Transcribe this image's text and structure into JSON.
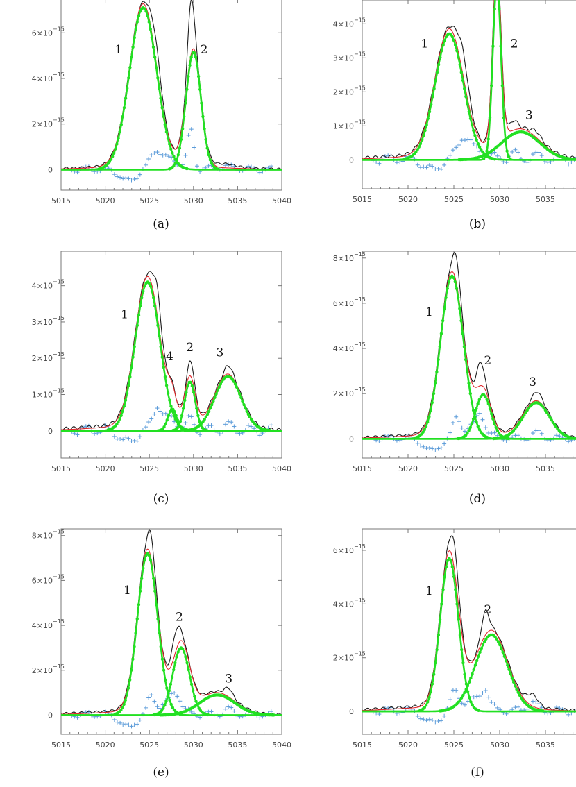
{
  "figure": {
    "colors": {
      "observed": "#1a1a1a",
      "model": "#e0282d",
      "component": "#22e022",
      "residual": "#5b9bd9",
      "axis": "#777777"
    }
  },
  "chart_data": [
    {
      "panel": "a",
      "caption": "(a)",
      "type": "line",
      "xlabel": "",
      "ylabel": "",
      "xlim": [
        5015,
        5040
      ],
      "ylim": [
        -0.9,
        7.5
      ],
      "xticks": [
        5015,
        5020,
        5025,
        5030,
        5035,
        5040
      ],
      "xtick_labels": [
        "5015",
        "5020",
        "5025",
        "5030",
        "5035",
        "5040"
      ],
      "yticks": [
        0,
        2,
        4,
        6
      ],
      "ytick_labels": [
        "0",
        "2×10",
        "4×10",
        "6×10"
      ],
      "exponent": "−15",
      "components": [
        {
          "label": "1",
          "center": 5024.3,
          "amp": 7.1,
          "sigma": 1.55
        },
        {
          "label": "2",
          "center": 5030.0,
          "amp": 5.15,
          "sigma": 0.85
        }
      ],
      "label_positions": [
        {
          "label": "1",
          "x": 5021.5,
          "y": 5.1
        },
        {
          "label": "2",
          "x": 5031.2,
          "y": 5.1
        }
      ],
      "features": [
        {
          "center": 5025.7,
          "amp": 0.9,
          "sigma": 0.6
        },
        {
          "center": 5029.7,
          "amp": 2.4,
          "sigma": 0.35
        },
        {
          "center": 5033.5,
          "amp": 0.15,
          "sigma": 1.2
        }
      ],
      "wing": 0.2,
      "model_wing": 0.18
    },
    {
      "panel": "b",
      "caption": "(b)",
      "type": "line",
      "xlabel": "",
      "ylabel": "",
      "xlim": [
        5015,
        5040
      ],
      "ylim": [
        -0.85,
        4.7
      ],
      "xticks": [
        5015,
        5020,
        5025,
        5030,
        5035,
        5040
      ],
      "xtick_labels": [
        "5015",
        "5020",
        "5025",
        "5030",
        "5035",
        "5040"
      ],
      "yticks": [
        0,
        1,
        2,
        3,
        4
      ],
      "ytick_labels": [
        "0",
        "1×10",
        "2×10",
        "3×10",
        "4×10"
      ],
      "exponent": "−15",
      "components": [
        {
          "label": "1",
          "center": 5024.5,
          "amp": 3.7,
          "sigma": 1.55
        },
        {
          "label": "2",
          "center": 5029.7,
          "amp": 5.2,
          "sigma": 0.45
        },
        {
          "label": "3",
          "center": 5032.3,
          "amp": 0.82,
          "sigma": 2.1
        }
      ],
      "label_positions": [
        {
          "label": "1",
          "x": 5021.8,
          "y": 3.3
        },
        {
          "label": "2",
          "x": 5031.6,
          "y": 3.3
        },
        {
          "label": "3",
          "x": 5033.2,
          "y": 1.2
        }
      ],
      "features": [
        {
          "center": 5026.0,
          "amp": 0.7,
          "sigma": 0.6
        },
        {
          "center": 5031.5,
          "amp": 0.25,
          "sigma": 0.4
        },
        {
          "center": 5034.0,
          "amp": 0.15,
          "sigma": 0.5
        }
      ],
      "wing": 0.2,
      "model_wing": 0.16
    },
    {
      "panel": "c",
      "caption": "(c)",
      "type": "line",
      "xlabel": "",
      "ylabel": "",
      "xlim": [
        5015,
        5040
      ],
      "ylim": [
        -0.75,
        4.95
      ],
      "xticks": [
        5015,
        5020,
        5025,
        5030,
        5035,
        5040
      ],
      "xtick_labels": [
        "5015",
        "5020",
        "5025",
        "5030",
        "5035",
        "5040"
      ],
      "yticks": [
        0,
        1,
        2,
        3,
        4
      ],
      "ytick_labels": [
        "0",
        "1×10",
        "2×10",
        "3×10",
        "4×10"
      ],
      "exponent": "−15",
      "components": [
        {
          "label": "1",
          "center": 5024.8,
          "amp": 4.1,
          "sigma": 1.4
        },
        {
          "label": "4",
          "center": 5027.6,
          "amp": 0.6,
          "sigma": 0.5
        },
        {
          "label": "2",
          "center": 5029.6,
          "amp": 1.35,
          "sigma": 0.6
        },
        {
          "label": "3",
          "center": 5033.9,
          "amp": 1.5,
          "sigma": 1.5
        }
      ],
      "label_positions": [
        {
          "label": "1",
          "x": 5022.2,
          "y": 3.1
        },
        {
          "label": "4",
          "x": 5027.3,
          "y": 1.95
        },
        {
          "label": "2",
          "x": 5029.6,
          "y": 2.2
        },
        {
          "label": "3",
          "x": 5033.0,
          "y": 2.05
        }
      ],
      "features": [
        {
          "center": 5025.9,
          "amp": 0.75,
          "sigma": 0.45
        },
        {
          "center": 5029.7,
          "amp": 0.4,
          "sigma": 0.3
        },
        {
          "center": 5034.0,
          "amp": 0.2,
          "sigma": 0.4
        }
      ],
      "wing": 0.2,
      "model_wing": 0.16
    },
    {
      "panel": "d",
      "caption": "(d)",
      "type": "line",
      "xlabel": "",
      "ylabel": "",
      "xlim": [
        5015,
        5040
      ],
      "ylim": [
        -0.85,
        8.3
      ],
      "xticks": [
        5015,
        5020,
        5025,
        5030,
        5035,
        5040
      ],
      "xtick_labels": [
        "5015",
        "5020",
        "5025",
        "5030",
        "5035",
        "5040"
      ],
      "yticks": [
        0,
        2,
        4,
        6,
        8
      ],
      "ytick_labels": [
        "0",
        "2×10",
        "4×10",
        "6×10",
        "8×10"
      ],
      "exponent": "−15",
      "components": [
        {
          "label": "1",
          "center": 5024.8,
          "amp": 7.2,
          "sigma": 1.25
        },
        {
          "label": "2",
          "center": 5028.2,
          "amp": 1.95,
          "sigma": 0.85
        },
        {
          "label": "3",
          "center": 5034.0,
          "amp": 1.6,
          "sigma": 1.45
        }
      ],
      "label_positions": [
        {
          "label": "1",
          "x": 5022.3,
          "y": 5.45
        },
        {
          "label": "2",
          "x": 5028.7,
          "y": 3.3
        },
        {
          "label": "3",
          "x": 5033.6,
          "y": 2.35
        }
      ],
      "features": [
        {
          "center": 5025.3,
          "amp": 1.1,
          "sigma": 0.4
        },
        {
          "center": 5027.9,
          "amp": 1.0,
          "sigma": 0.4
        },
        {
          "center": 5034.1,
          "amp": 0.35,
          "sigma": 0.5
        }
      ],
      "wing": 0.25,
      "model_wing": 0.2
    },
    {
      "panel": "e",
      "caption": "(e)",
      "type": "line",
      "xlabel": "",
      "ylabel": "",
      "xlim": [
        5015,
        5040
      ],
      "ylim": [
        -0.85,
        8.3
      ],
      "xticks": [
        5015,
        5020,
        5025,
        5030,
        5035,
        5040
      ],
      "xtick_labels": [
        "5015",
        "5020",
        "5025",
        "5030",
        "5035",
        "5040"
      ],
      "yticks": [
        0,
        2,
        4,
        6,
        8
      ],
      "ytick_labels": [
        "0",
        "2×10",
        "4×10",
        "6×10",
        "8×10"
      ],
      "exponent": "−15",
      "components": [
        {
          "label": "1",
          "center": 5024.8,
          "amp": 7.2,
          "sigma": 1.15
        },
        {
          "label": "2",
          "center": 5028.6,
          "amp": 3.0,
          "sigma": 0.95
        },
        {
          "label": "3",
          "center": 5032.7,
          "amp": 0.9,
          "sigma": 2.0
        }
      ],
      "label_positions": [
        {
          "label": "1",
          "x": 5022.5,
          "y": 5.4
        },
        {
          "label": "2",
          "x": 5028.4,
          "y": 4.2
        },
        {
          "label": "3",
          "x": 5034.0,
          "y": 1.45
        }
      ],
      "features": [
        {
          "center": 5025.2,
          "amp": 1.0,
          "sigma": 0.4
        },
        {
          "center": 5028.0,
          "amp": 0.85,
          "sigma": 0.5
        },
        {
          "center": 5034.0,
          "amp": 0.35,
          "sigma": 0.45
        }
      ],
      "wing": 0.25,
      "model_wing": 0.2
    },
    {
      "panel": "f",
      "caption": "(f)",
      "type": "line",
      "xlabel": "",
      "ylabel": "",
      "xlim": [
        5015,
        5040
      ],
      "ylim": [
        -0.85,
        6.8
      ],
      "xticks": [
        5015,
        5020,
        5025,
        5030,
        5035,
        5040
      ],
      "xtick_labels": [
        "5015",
        "5020",
        "5025",
        "5030",
        "5035",
        "5040"
      ],
      "yticks": [
        0,
        2,
        4,
        6
      ],
      "ytick_labels": [
        "0",
        "2×10",
        "4×10",
        "6×10"
      ],
      "exponent": "−15",
      "components": [
        {
          "label": "1",
          "center": 5024.5,
          "amp": 5.7,
          "sigma": 1.0
        },
        {
          "label": "2",
          "center": 5029.1,
          "amp": 2.85,
          "sigma": 1.75
        }
      ],
      "label_positions": [
        {
          "label": "1",
          "x": 5022.3,
          "y": 4.35
        },
        {
          "label": "2",
          "x": 5028.7,
          "y": 3.65
        }
      ],
      "features": [
        {
          "center": 5025.1,
          "amp": 0.9,
          "sigma": 0.45
        },
        {
          "center": 5028.4,
          "amp": 0.85,
          "sigma": 0.4
        },
        {
          "center": 5033.6,
          "amp": 0.4,
          "sigma": 0.6
        }
      ],
      "wing": 0.25,
      "model_wing": 0.2
    }
  ]
}
